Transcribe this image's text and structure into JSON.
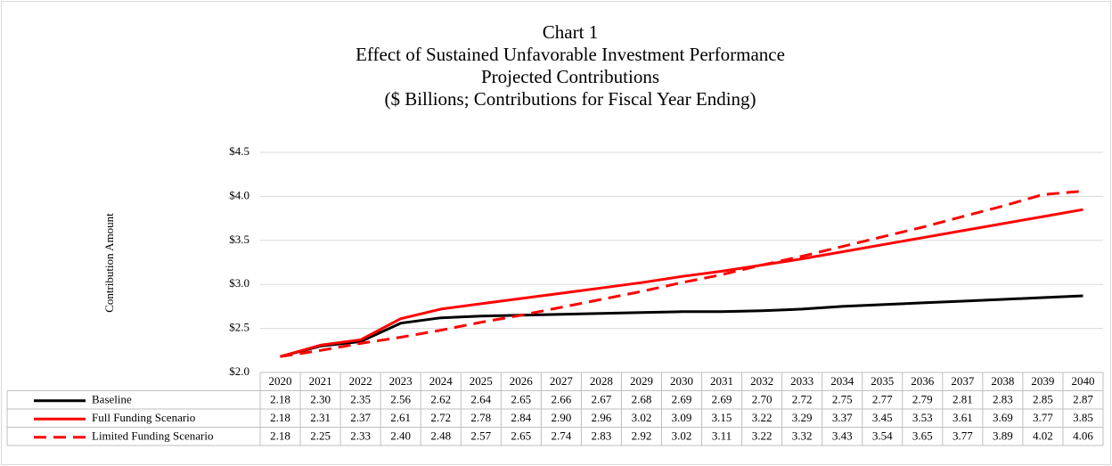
{
  "chart_data": {
    "type": "line",
    "title": [
      "Chart 1",
      "Effect of Sustained Unfavorable Investment Performance",
      "Projected Contributions",
      "($ Billions;  Contributions for Fiscal Year Ending)"
    ],
    "y_label": "Contribution Amount",
    "categories": [
      "2020",
      "2021",
      "2022",
      "2023",
      "2024",
      "2025",
      "2026",
      "2027",
      "2028",
      "2029",
      "2030",
      "2031",
      "2032",
      "2033",
      "2034",
      "2035",
      "2036",
      "2037",
      "2038",
      "2039",
      "2040"
    ],
    "series": [
      {
        "name": "Baseline",
        "color": "#000000",
        "dash": false,
        "values": [
          2.18,
          2.3,
          2.35,
          2.56,
          2.62,
          2.64,
          2.65,
          2.66,
          2.67,
          2.68,
          2.69,
          2.69,
          2.7,
          2.72,
          2.75,
          2.77,
          2.79,
          2.81,
          2.83,
          2.85,
          2.87
        ],
        "value_labels": [
          "2.18",
          "2.30",
          "2.35",
          "2.56",
          "2.62",
          "2.64",
          "2.65",
          "2.66",
          "2.67",
          "2.68",
          "2.69",
          "2.69",
          "2.70",
          "2.72",
          "2.75",
          "2.77",
          "2.79",
          "2.81",
          "2.83",
          "2.85",
          "2.87"
        ]
      },
      {
        "name": "Full Funding Scenario",
        "color": "#ff0000",
        "dash": false,
        "values": [
          2.18,
          2.31,
          2.37,
          2.61,
          2.72,
          2.78,
          2.84,
          2.9,
          2.96,
          3.02,
          3.09,
          3.15,
          3.22,
          3.29,
          3.37,
          3.45,
          3.53,
          3.61,
          3.69,
          3.77,
          3.85
        ],
        "value_labels": [
          "2.18",
          "2.31",
          "2.37",
          "2.61",
          "2.72",
          "2.78",
          "2.84",
          "2.90",
          "2.96",
          "3.02",
          "3.09",
          "3.15",
          "3.22",
          "3.29",
          "3.37",
          "3.45",
          "3.53",
          "3.61",
          "3.69",
          "3.77",
          "3.85"
        ]
      },
      {
        "name": "Limited Funding Scenario",
        "color": "#ff0000",
        "dash": true,
        "values": [
          2.18,
          2.25,
          2.33,
          2.4,
          2.48,
          2.57,
          2.65,
          2.74,
          2.83,
          2.92,
          3.02,
          3.11,
          3.22,
          3.32,
          3.43,
          3.54,
          3.65,
          3.77,
          3.89,
          4.02,
          4.06
        ],
        "value_labels": [
          "2.18",
          "2.25",
          "2.33",
          "2.40",
          "2.48",
          "2.57",
          "2.65",
          "2.74",
          "2.83",
          "2.92",
          "3.02",
          "3.11",
          "3.22",
          "3.32",
          "3.43",
          "3.54",
          "3.65",
          "3.77",
          "3.89",
          "4.02",
          "4.06"
        ]
      }
    ],
    "ylim": [
      2.0,
      4.5
    ],
    "yticks": [
      {
        "value": 2.0,
        "label": "$2.0"
      },
      {
        "value": 2.5,
        "label": "$2.5"
      },
      {
        "value": 3.0,
        "label": "$3.0"
      },
      {
        "value": 3.5,
        "label": "$3.5"
      },
      {
        "value": 4.0,
        "label": "$4.0"
      },
      {
        "value": 4.5,
        "label": "$4.5"
      }
    ],
    "grid": true
  }
}
